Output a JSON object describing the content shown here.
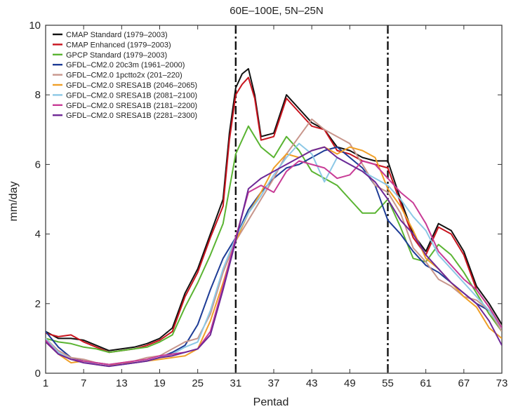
{
  "chart_data": {
    "type": "line",
    "title": "60E–100E, 5N–25N",
    "xlabel": "Pentad",
    "ylabel": "mm/day",
    "xlim": [
      1,
      73
    ],
    "ylim": [
      0,
      10
    ],
    "xticks": [
      1,
      7,
      13,
      19,
      25,
      31,
      37,
      43,
      49,
      55,
      61,
      67,
      73
    ],
    "yticks": [
      0,
      2,
      4,
      6,
      8,
      10
    ],
    "vlines": [
      31,
      55
    ],
    "legend_position": "top-left",
    "grid": false,
    "series": [
      {
        "name": "CMAP Standard (1979–2003)",
        "color": "#111111",
        "x": [
          1,
          3,
          5,
          7,
          9,
          11,
          13,
          15,
          17,
          19,
          21,
          23,
          25,
          27,
          29,
          30,
          31,
          32,
          33,
          34,
          35,
          37,
          39,
          41,
          43,
          45,
          47,
          49,
          51,
          53,
          55,
          57,
          59,
          61,
          63,
          65,
          67,
          69,
          71,
          73
        ],
        "y": [
          1.2,
          1.0,
          1.0,
          0.95,
          0.8,
          0.65,
          0.7,
          0.75,
          0.85,
          1.0,
          1.3,
          2.3,
          3.0,
          4.0,
          5.0,
          6.9,
          8.2,
          8.6,
          8.75,
          8.0,
          6.8,
          6.9,
          8.0,
          7.6,
          7.2,
          7.0,
          6.5,
          6.4,
          6.2,
          6.1,
          6.1,
          5.0,
          4.0,
          3.5,
          4.3,
          4.1,
          3.5,
          2.5,
          2.0,
          1.4
        ]
      },
      {
        "name": "CMAP Enhanced (1979–2003)",
        "color": "#c8141e",
        "x": [
          1,
          3,
          5,
          7,
          9,
          11,
          13,
          15,
          17,
          19,
          21,
          23,
          25,
          27,
          29,
          30,
          31,
          32,
          33,
          34,
          35,
          37,
          39,
          41,
          43,
          45,
          47,
          49,
          51,
          53,
          55,
          57,
          59,
          61,
          63,
          65,
          67,
          69,
          71,
          73
        ],
        "y": [
          1.15,
          1.05,
          1.1,
          0.9,
          0.75,
          0.6,
          0.65,
          0.7,
          0.8,
          0.95,
          1.2,
          2.2,
          2.9,
          3.9,
          4.8,
          6.7,
          8.0,
          8.3,
          8.5,
          7.9,
          6.7,
          6.8,
          7.9,
          7.5,
          7.1,
          7.0,
          6.4,
          6.3,
          6.1,
          6.0,
          5.9,
          4.9,
          3.9,
          3.4,
          4.2,
          4.0,
          3.4,
          2.4,
          1.9,
          1.3
        ]
      },
      {
        "name": "GPCP Standard (1979–2003)",
        "color": "#5ab432",
        "x": [
          1,
          3,
          5,
          7,
          9,
          11,
          13,
          15,
          17,
          19,
          21,
          23,
          25,
          27,
          29,
          31,
          33,
          35,
          37,
          39,
          41,
          43,
          45,
          47,
          49,
          51,
          53,
          55,
          57,
          59,
          61,
          63,
          65,
          67,
          69,
          71,
          73
        ],
        "y": [
          1.0,
          0.9,
          0.85,
          0.75,
          0.7,
          0.6,
          0.65,
          0.7,
          0.75,
          0.9,
          1.1,
          1.9,
          2.6,
          3.4,
          4.3,
          6.3,
          7.1,
          6.5,
          6.2,
          6.8,
          6.4,
          5.8,
          5.6,
          5.4,
          5.0,
          4.6,
          4.6,
          5.0,
          4.2,
          3.3,
          3.2,
          3.7,
          3.4,
          2.9,
          2.3,
          1.7,
          1.2
        ]
      },
      {
        "name": "GFDL–CM2.0 20c3m (1961–2000)",
        "color": "#1e3c96",
        "x": [
          1,
          3,
          5,
          7,
          9,
          11,
          13,
          15,
          17,
          19,
          21,
          23,
          25,
          27,
          29,
          31,
          33,
          35,
          37,
          39,
          41,
          43,
          45,
          47,
          49,
          51,
          53,
          55,
          57,
          59,
          61,
          63,
          65,
          67,
          69,
          71,
          73
        ],
        "y": [
          1.2,
          0.75,
          0.45,
          0.35,
          0.3,
          0.25,
          0.25,
          0.3,
          0.35,
          0.45,
          0.6,
          0.8,
          1.4,
          2.4,
          3.3,
          3.9,
          4.7,
          5.2,
          5.6,
          5.9,
          6.0,
          6.2,
          6.4,
          6.5,
          6.2,
          5.9,
          5.4,
          4.4,
          4.0,
          3.5,
          3.1,
          2.9,
          2.6,
          2.3,
          2.0,
          1.8,
          1.3
        ]
      },
      {
        "name": "GFDL–CM2.0 1pctto2x (201–220)",
        "color": "#c8968c",
        "x": [
          1,
          3,
          5,
          7,
          9,
          11,
          13,
          15,
          17,
          19,
          21,
          23,
          25,
          27,
          29,
          31,
          33,
          35,
          37,
          39,
          41,
          43,
          45,
          47,
          49,
          51,
          53,
          55,
          57,
          59,
          61,
          63,
          65,
          67,
          69,
          71,
          73
        ],
        "y": [
          1.0,
          0.65,
          0.45,
          0.4,
          0.3,
          0.25,
          0.3,
          0.35,
          0.45,
          0.5,
          0.7,
          0.9,
          1.0,
          1.7,
          2.9,
          3.8,
          4.4,
          5.0,
          5.6,
          6.3,
          6.8,
          7.3,
          7.0,
          6.8,
          6.6,
          6.0,
          5.4,
          5.2,
          4.6,
          3.6,
          3.2,
          2.7,
          2.5,
          2.2,
          2.1,
          1.8,
          1.2
        ]
      },
      {
        "name": "GFDL–CM2.0 SRESA1B (2046–2065)",
        "color": "#f0a028",
        "x": [
          1,
          3,
          5,
          7,
          9,
          11,
          13,
          15,
          17,
          19,
          21,
          23,
          25,
          27,
          29,
          31,
          33,
          35,
          37,
          39,
          41,
          43,
          45,
          47,
          49,
          51,
          53,
          55,
          57,
          59,
          61,
          63,
          65,
          67,
          69,
          71,
          73
        ],
        "y": [
          0.9,
          0.55,
          0.3,
          0.35,
          0.25,
          0.2,
          0.3,
          0.3,
          0.35,
          0.4,
          0.45,
          0.5,
          0.7,
          1.5,
          2.6,
          3.8,
          4.6,
          5.2,
          5.9,
          6.3,
          6.2,
          6.4,
          6.5,
          6.3,
          6.5,
          6.4,
          6.2,
          5.3,
          4.8,
          4.1,
          3.3,
          3.0,
          2.6,
          2.2,
          1.9,
          1.3,
          1.0
        ]
      },
      {
        "name": "GFDL–CM2.0 SRESA1B (2081–2100)",
        "color": "#8cc8e6",
        "x": [
          1,
          3,
          5,
          7,
          9,
          11,
          13,
          15,
          17,
          19,
          21,
          23,
          25,
          27,
          29,
          31,
          33,
          35,
          37,
          39,
          41,
          43,
          45,
          47,
          49,
          51,
          53,
          55,
          57,
          59,
          61,
          63,
          65,
          67,
          69,
          71,
          73
        ],
        "y": [
          1.0,
          0.6,
          0.4,
          0.35,
          0.25,
          0.2,
          0.25,
          0.3,
          0.35,
          0.45,
          0.55,
          0.75,
          0.9,
          1.8,
          3.0,
          3.9,
          4.6,
          5.1,
          5.7,
          6.2,
          6.6,
          6.3,
          5.5,
          6.2,
          6.0,
          5.8,
          5.6,
          5.4,
          5.0,
          4.5,
          4.1,
          3.4,
          3.0,
          2.6,
          2.2,
          1.8,
          1.3
        ]
      },
      {
        "name": "GFDL–CM2.0 SRESA1B (2181–2200)",
        "color": "#c83c96",
        "x": [
          1,
          3,
          5,
          7,
          9,
          11,
          13,
          15,
          17,
          19,
          21,
          23,
          25,
          27,
          29,
          31,
          33,
          35,
          37,
          39,
          41,
          43,
          45,
          47,
          49,
          51,
          53,
          55,
          57,
          59,
          61,
          63,
          65,
          67,
          69,
          71,
          73
        ],
        "y": [
          0.95,
          0.55,
          0.4,
          0.35,
          0.3,
          0.25,
          0.3,
          0.35,
          0.4,
          0.5,
          0.55,
          0.6,
          0.7,
          1.2,
          2.5,
          3.9,
          5.2,
          5.4,
          5.2,
          5.8,
          6.1,
          6.0,
          5.9,
          5.6,
          5.7,
          6.1,
          6.0,
          5.6,
          5.2,
          4.9,
          4.3,
          3.5,
          3.1,
          2.7,
          2.4,
          1.9,
          1.3
        ]
      },
      {
        "name": "GFDL–CM2.0 SRESA1B (2281–2300)",
        "color": "#6e2896",
        "x": [
          1,
          3,
          5,
          7,
          9,
          11,
          13,
          15,
          17,
          19,
          21,
          23,
          25,
          27,
          29,
          31,
          33,
          35,
          37,
          39,
          41,
          43,
          45,
          47,
          49,
          51,
          53,
          55,
          57,
          59,
          61,
          63,
          65,
          67,
          69,
          71,
          73
        ],
        "y": [
          0.9,
          0.55,
          0.4,
          0.3,
          0.25,
          0.2,
          0.25,
          0.3,
          0.35,
          0.45,
          0.5,
          0.6,
          0.7,
          1.1,
          2.4,
          3.8,
          5.3,
          5.6,
          5.8,
          6.0,
          6.2,
          6.4,
          6.5,
          6.2,
          6.0,
          5.8,
          5.5,
          5.0,
          4.4,
          4.0,
          3.4,
          3.0,
          2.6,
          2.3,
          2.0,
          1.5,
          0.8
        ]
      }
    ]
  }
}
